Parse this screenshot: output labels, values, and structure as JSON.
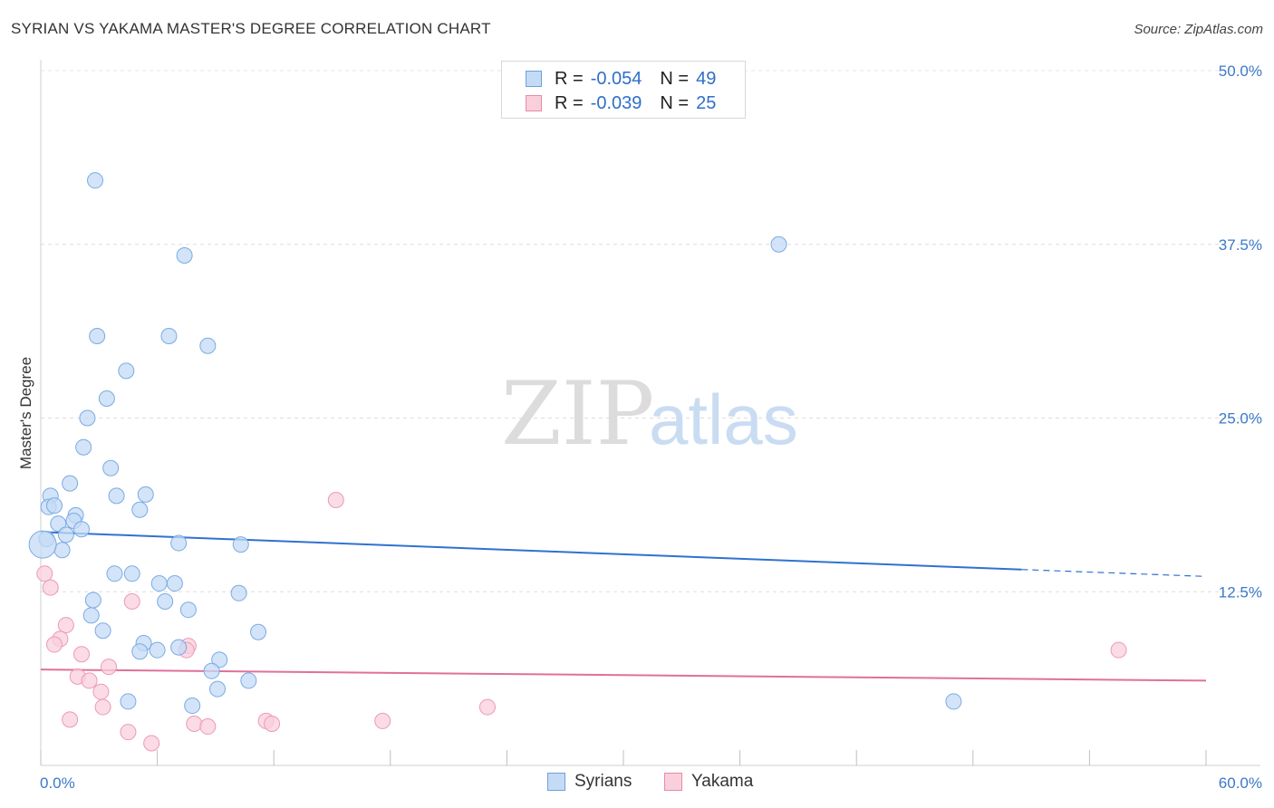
{
  "title": "SYRIAN VS YAKAMA MASTER'S DEGREE CORRELATION CHART",
  "source": "Source: ZipAtlas.com",
  "watermark": {
    "zip": "ZIP",
    "atlas": "atlas"
  },
  "legend": {
    "rows": [
      {
        "r_label": "R =",
        "r_value": "-0.054",
        "n_label": "N =",
        "n_value": "49",
        "color": "#b8d3f3",
        "border": "#6f9fdc"
      },
      {
        "r_label": "R =",
        "r_value": "-0.039",
        "n_label": "N =",
        "n_value": "25",
        "color": "#f8c9d8",
        "border": "#e88aa8"
      }
    ]
  },
  "bottom_legend": {
    "syrians": "Syrians",
    "yakama": "Yakama"
  },
  "chart_data": {
    "type": "scatter",
    "title": "SYRIAN VS YAKAMA MASTER'S DEGREE CORRELATION CHART",
    "xlabel": "",
    "ylabel": "Master's Degree",
    "xlim": [
      0,
      60
    ],
    "ylim": [
      0,
      50
    ],
    "x_tick_labels": [
      "0.0%",
      "60.0%"
    ],
    "y_ticks": [
      12.5,
      25.0,
      37.5,
      50.0
    ],
    "y_tick_labels": [
      "12.5%",
      "25.0%",
      "37.5%",
      "50.0%"
    ],
    "series": [
      {
        "name": "Syrians",
        "color": "#7aaae4",
        "fill": "#c4dbf5",
        "trend": {
          "x": [
            0,
            50.5
          ],
          "y": [
            16.8,
            14.1
          ],
          "dash_x": [
            50.5,
            60
          ],
          "dash_y": [
            14.1,
            13.6
          ],
          "color": "#2f72d0"
        },
        "points": [
          [
            2.8,
            42.1
          ],
          [
            7.4,
            36.7
          ],
          [
            38.0,
            37.5
          ],
          [
            2.9,
            30.9
          ],
          [
            6.6,
            30.9
          ],
          [
            8.6,
            30.2
          ],
          [
            4.4,
            28.4
          ],
          [
            3.4,
            26.4
          ],
          [
            2.4,
            25.0
          ],
          [
            2.2,
            22.9
          ],
          [
            3.6,
            21.4
          ],
          [
            1.5,
            20.3
          ],
          [
            0.5,
            19.4
          ],
          [
            0.4,
            18.6
          ],
          [
            0.7,
            18.7
          ],
          [
            3.9,
            19.4
          ],
          [
            5.4,
            19.5
          ],
          [
            5.1,
            18.4
          ],
          [
            1.8,
            18.0
          ],
          [
            1.7,
            17.6
          ],
          [
            0.9,
            17.4
          ],
          [
            2.1,
            17.0
          ],
          [
            1.3,
            16.6
          ],
          [
            0.3,
            16.3
          ],
          [
            1.1,
            15.5
          ],
          [
            7.1,
            16.0
          ],
          [
            10.3,
            15.9
          ],
          [
            3.8,
            13.8
          ],
          [
            4.7,
            13.8
          ],
          [
            6.9,
            13.1
          ],
          [
            6.1,
            13.1
          ],
          [
            10.2,
            12.4
          ],
          [
            2.7,
            11.9
          ],
          [
            6.4,
            11.8
          ],
          [
            7.6,
            11.2
          ],
          [
            2.6,
            10.8
          ],
          [
            3.2,
            9.7
          ],
          [
            11.2,
            9.6
          ],
          [
            5.3,
            8.8
          ],
          [
            5.1,
            8.2
          ],
          [
            7.1,
            8.5
          ],
          [
            6.0,
            8.3
          ],
          [
            9.2,
            7.6
          ],
          [
            8.8,
            6.8
          ],
          [
            10.7,
            6.1
          ],
          [
            9.1,
            5.5
          ],
          [
            4.5,
            4.6
          ],
          [
            7.8,
            4.3
          ],
          [
            47.0,
            4.6
          ]
        ]
      },
      {
        "name": "Yakama",
        "color": "#ec9ab5",
        "fill": "#f9cfdc",
        "trend": {
          "x": [
            0,
            60
          ],
          "y": [
            6.9,
            6.1
          ],
          "color": "#e0709a"
        },
        "points": [
          [
            15.2,
            19.1
          ],
          [
            0.2,
            13.8
          ],
          [
            0.5,
            12.8
          ],
          [
            4.7,
            11.8
          ],
          [
            1.3,
            10.1
          ],
          [
            1.0,
            9.1
          ],
          [
            0.7,
            8.7
          ],
          [
            7.6,
            8.6
          ],
          [
            7.5,
            8.3
          ],
          [
            2.1,
            8.0
          ],
          [
            3.5,
            7.1
          ],
          [
            1.9,
            6.4
          ],
          [
            2.5,
            6.1
          ],
          [
            3.1,
            5.3
          ],
          [
            3.2,
            4.2
          ],
          [
            23.0,
            4.2
          ],
          [
            55.5,
            8.3
          ],
          [
            1.5,
            3.3
          ],
          [
            11.6,
            3.2
          ],
          [
            11.9,
            3.0
          ],
          [
            17.6,
            3.2
          ],
          [
            7.9,
            3.0
          ],
          [
            8.6,
            2.8
          ],
          [
            4.5,
            2.4
          ],
          [
            5.7,
            1.6
          ]
        ]
      }
    ]
  }
}
